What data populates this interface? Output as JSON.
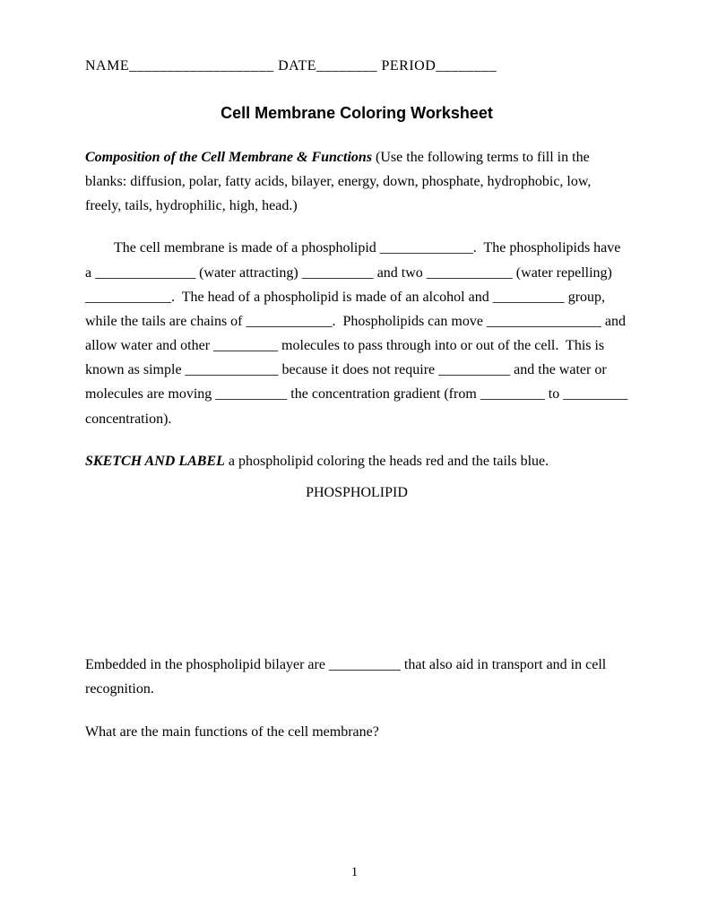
{
  "header": {
    "name_label": "NAME",
    "name_blank": "___________________",
    "date_label": "DATE",
    "date_blank": "________",
    "period_label": "PERIOD",
    "period_blank": "________"
  },
  "title": "Cell Membrane Coloring Worksheet",
  "intro": {
    "lead": "Composition of the Cell Membrane & Functions",
    "rest": " (Use the following terms to fill in the blanks: diffusion, polar, fatty acids, bilayer, energy, down, phosphate, hydrophobic, low, freely, tails, hydrophilic, high, head.)"
  },
  "body": "        The cell membrane is made of a phospholipid _____________.  The phospholipids have a ______________ (water attracting) __________ and two ____________ (water repelling) ____________.  The head of a phospholipid is made of an alcohol and __________ group, while the tails are chains of ____________.  Phospholipids can move ________________ and allow water and other _________ molecules to pass through into or out of the cell.  This is known as simple _____________ because it does not require __________ and the water or molecules are moving __________ the concentration gradient (from _________ to _________ concentration).",
  "sketch": {
    "lead": "SKETCH AND LABEL",
    "rest": " a phospholipid coloring the heads red and the tails blue."
  },
  "phospholipid_label": "PHOSPHOLIPID",
  "embedded": "Embedded in the phospholipid bilayer are __________ that also aid in transport and in cell recognition.",
  "question": "What are the main functions of the cell membrane?",
  "page_number": "1",
  "colors": {
    "page_bg": "#ffffff",
    "text": "#000000"
  }
}
